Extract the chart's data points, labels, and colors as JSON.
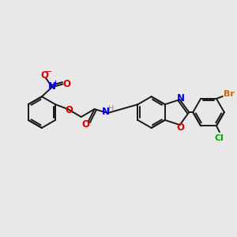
{
  "bg_color": "#e8e8e8",
  "bond_color": "#1a1a1a",
  "atom_colors": {
    "O": "#dd0000",
    "N": "#0000ee",
    "Br": "#cc6600",
    "Cl": "#00aa00",
    "H": "#888888"
  },
  "figsize": [
    3.0,
    3.0
  ],
  "dpi": 100,
  "lw": 1.4,
  "fs": 7.0
}
